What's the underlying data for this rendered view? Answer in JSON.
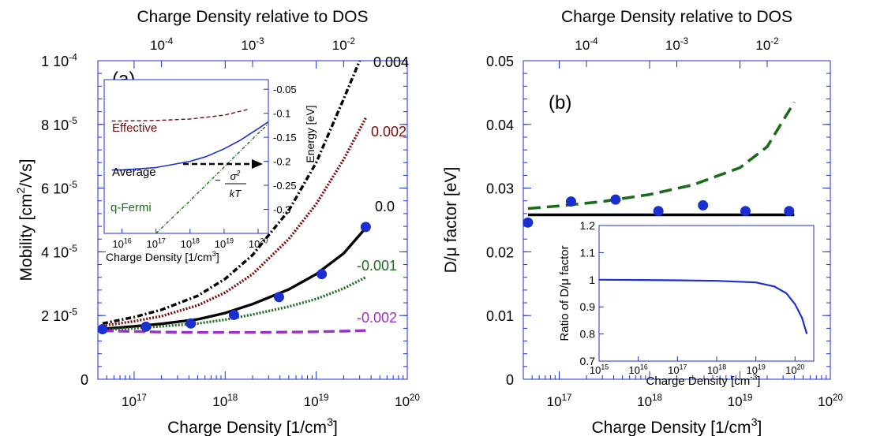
{
  "chart_data": [
    {
      "type": "line",
      "panel_label": "(a)",
      "xlabel": "Charge Density [1/cm",
      "xlabel_sup": "3",
      "xlabel_end": "]",
      "ylabel": "Mobility [cm",
      "ylabel_sup": "2",
      "ylabel_end": "/Vs]",
      "top_axis_label": "Charge Density relative to DOS",
      "xscale": "log",
      "xlim": [
        4e+16,
        1e+20
      ],
      "ylim": [
        0,
        0.0001
      ],
      "x_ticks": [
        {
          "value": 1e+17,
          "base": "10",
          "exp": "17"
        },
        {
          "value": 1e+18,
          "base": "10",
          "exp": "18"
        },
        {
          "value": 1e+19,
          "base": "10",
          "exp": "19"
        },
        {
          "value": 1e+20,
          "base": "10",
          "exp": "20"
        }
      ],
      "y_ticks": [
        {
          "value": 0,
          "mant": "0",
          "exp": ""
        },
        {
          "value": 2e-05,
          "mant": "2 10",
          "exp": "-5"
        },
        {
          "value": 4e-05,
          "mant": "4 10",
          "exp": "-5"
        },
        {
          "value": 6e-05,
          "mant": "6 10",
          "exp": "-5"
        },
        {
          "value": 8e-05,
          "mant": "8 10",
          "exp": "-5"
        },
        {
          "value": 0.0001,
          "mant": "1 10",
          "exp": "-4"
        }
      ],
      "top_ticks": [
        {
          "value": 0.0001,
          "base": "10",
          "exp": "-4"
        },
        {
          "value": 0.001,
          "base": "10",
          "exp": "-3"
        },
        {
          "value": 0.01,
          "base": "10",
          "exp": "-2"
        }
      ],
      "series": [
        {
          "name": "0.004",
          "color": "#000000",
          "dash": "7,3,2,3",
          "width": 3.4,
          "x": [
            4.5e+16,
            1e+17,
            2e+17,
            5e+17,
            1e+18,
            2e+18,
            5e+18,
            1e+19,
            2e+19,
            3e+19
          ],
          "y": [
            1.75e-05,
            1.95e-05,
            2.18e-05,
            2.62e-05,
            3.15e-05,
            3.9e-05,
            5.3e-05,
            6.8e-05,
            8.8e-05,
            0.0001
          ]
        },
        {
          "name": "0.002",
          "color": "#7b0b0b",
          "dash": "2,2",
          "width": 3.4,
          "x": [
            4.5e+16,
            1e+17,
            2e+17,
            5e+17,
            1e+18,
            2e+18,
            5e+18,
            1e+19,
            2e+19,
            3.5e+19
          ],
          "y": [
            1.68e-05,
            1.82e-05,
            1.98e-05,
            2.32e-05,
            2.72e-05,
            3.3e-05,
            4.4e-05,
            5.5e-05,
            6.9e-05,
            8.2e-05
          ]
        },
        {
          "name": "0.0",
          "color": "#000000",
          "dash": "",
          "width": 3.4,
          "x": [
            4.5e+16,
            1e+17,
            2e+17,
            5e+17,
            1e+18,
            2e+18,
            5e+18,
            1e+19,
            2e+19,
            3.5e+19
          ],
          "y": [
            1.58e-05,
            1.66e-05,
            1.74e-05,
            1.88e-05,
            2.08e-05,
            2.36e-05,
            2.82e-05,
            3.3e-05,
            3.95e-05,
            4.75e-05
          ]
        },
        {
          "name": "-0.001",
          "color": "#1e6b1e",
          "dash": "2,2",
          "width": 3.4,
          "x": [
            4.5e+16,
            1e+17,
            2e+17,
            5e+17,
            1e+18,
            2e+18,
            5e+18,
            1e+19,
            2e+19,
            3.5e+19
          ],
          "y": [
            1.55e-05,
            1.6e-05,
            1.66e-05,
            1.75e-05,
            1.87e-05,
            2.03e-05,
            2.28e-05,
            2.52e-05,
            2.85e-05,
            3.2e-05
          ]
        },
        {
          "name": "-0.002",
          "color": "#9b30c8",
          "dash": "14,6",
          "width": 3.4,
          "x": [
            4.5e+16,
            1e+17,
            2e+17,
            5e+17,
            1e+18,
            2e+18,
            5e+18,
            1e+19,
            2e+19,
            3.5e+19
          ],
          "y": [
            1.52e-05,
            1.5e-05,
            1.48e-05,
            1.47e-05,
            1.47e-05,
            1.47e-05,
            1.48e-05,
            1.49e-05,
            1.51e-05,
            1.53e-05
          ]
        }
      ],
      "points": {
        "color": "#1a2fd0",
        "x": [
          4.5e+16,
          1.35e+17,
          4.2e+17,
          1.25e+18,
          3.9e+18,
          1.15e+19,
          3.5e+19
        ],
        "y": [
          1.57e-05,
          1.65e-05,
          1.75e-05,
          2.02e-05,
          2.58e-05,
          3.3e-05,
          4.78e-05
        ]
      },
      "inset": {
        "xlabel": "Charge Density [1/cm",
        "xlabel_sup": "3",
        "xlabel_end": "]",
        "ylabel": "Energy [eV]",
        "xscale": "log",
        "xlim": [
          3000000000000000.0,
          2e+20
        ],
        "ylim": [
          -0.35,
          -0.03
        ],
        "x_ticks": [
          {
            "value": 1e+16,
            "base": "10",
            "exp": "16"
          },
          {
            "value": 1e+17,
            "base": "10",
            "exp": "17"
          },
          {
            "value": 1e+18,
            "base": "10",
            "exp": "18"
          },
          {
            "value": 1e+19,
            "base": "10",
            "exp": "19"
          },
          {
            "value": 1e+20,
            "base": "10",
            "exp": "20"
          }
        ],
        "y_ticks": [
          {
            "value": -0.05,
            "label": "-0.05"
          },
          {
            "value": -0.1,
            "label": "-0.1"
          },
          {
            "value": -0.15,
            "label": "-0.15"
          },
          {
            "value": -0.2,
            "label": "-0.2"
          },
          {
            "value": -0.25,
            "label": "-0.25"
          },
          {
            "value": -0.3,
            "label": "-0.3"
          }
        ],
        "series": [
          {
            "name": "Effective",
            "color": "#7b0b0b",
            "dash": "5,3",
            "width": 1.4,
            "x": [
              5000000000000000.0,
              1e+16,
              1e+17,
              1e+18,
              1e+19,
              5e+19
            ],
            "y": [
              -0.116,
              -0.116,
              -0.115,
              -0.112,
              -0.104,
              -0.092
            ]
          },
          {
            "name": "Average",
            "color": "#1a2fd0",
            "dash": "",
            "width": 1.6,
            "x": [
              5000000000000000.0,
              1e+16,
              1e+17,
              1e+18,
              3e+18,
              1e+19,
              3e+19,
              1e+20,
              2e+20
            ],
            "y": [
              -0.218,
              -0.218,
              -0.213,
              -0.2,
              -0.19,
              -0.174,
              -0.156,
              -0.132,
              -0.118
            ]
          },
          {
            "name": "q-Fermi",
            "color": "#1e6b1e",
            "dash": "4,2,1,2",
            "width": 1.4,
            "x": [
              1e+17,
              1e+18,
              1e+19,
              1e+20,
              2e+20
            ],
            "y": [
              -0.35,
              -0.282,
              -0.212,
              -0.142,
              -0.122
            ]
          }
        ],
        "labels": {
          "effective": "Effective",
          "average": "Average",
          "qfermi": "q-Fermi",
          "formula_minus": "−",
          "formula_num": "σ",
          "formula_num_sup": "2",
          "formula_den": "kT"
        }
      }
    },
    {
      "type": "line",
      "panel_label": "(b)",
      "xlabel": "Charge Density [1/cm",
      "xlabel_sup": "3",
      "xlabel_end": "]",
      "ylabel": "D/μ factor [eV]",
      "top_axis_label": "Charge Density relative to DOS",
      "xscale": "log",
      "xlim": [
        4e+16,
        1e+20
      ],
      "ylim": [
        0,
        0.05
      ],
      "x_ticks": [
        {
          "value": 1e+17,
          "base": "10",
          "exp": "17"
        },
        {
          "value": 1e+18,
          "base": "10",
          "exp": "18"
        },
        {
          "value": 1e+19,
          "base": "10",
          "exp": "19"
        },
        {
          "value": 1e+20,
          "base": "10",
          "exp": "20"
        }
      ],
      "y_ticks": [
        {
          "value": 0,
          "label": "0"
        },
        {
          "value": 0.01,
          "label": "0.01"
        },
        {
          "value": 0.02,
          "label": "0.02"
        },
        {
          "value": 0.03,
          "label": "0.03"
        },
        {
          "value": 0.04,
          "label": "0.04"
        },
        {
          "value": 0.05,
          "label": "0.05"
        }
      ],
      "top_ticks": [
        {
          "value": 0.0001,
          "base": "10",
          "exp": "-4"
        },
        {
          "value": 0.001,
          "base": "10",
          "exp": "-3"
        },
        {
          "value": 0.01,
          "base": "10",
          "exp": "-2"
        }
      ],
      "series": [
        {
          "color": "#1e6b1e",
          "dash": "16,8",
          "width": 3.6,
          "x": [
            4.5e+16,
            1e+17,
            3e+17,
            1e+18,
            3e+18,
            1e+19,
            2e+19,
            4e+19
          ],
          "y": [
            0.0268,
            0.0272,
            0.0279,
            0.029,
            0.0305,
            0.0332,
            0.0365,
            0.0435
          ]
        },
        {
          "color": "#000000",
          "dash": "",
          "width": 3.6,
          "x": [
            4.5e+16,
            4e+19
          ],
          "y": [
            0.0258,
            0.0258
          ]
        }
      ],
      "points": {
        "color": "#1a2fd0",
        "x": [
          4.5e+16,
          1.35e+17,
          4.2e+17,
          1.25e+18,
          3.9e+18,
          1.15e+19,
          3.5e+19
        ],
        "y": [
          0.0246,
          0.0279,
          0.0282,
          0.0264,
          0.0273,
          0.0264,
          0.0264
        ]
      },
      "inset": {
        "xlabel": "Charge Density [cm",
        "xlabel_sup": "-3",
        "xlabel_end": "]",
        "ylabel": "Ratio of D/μ factor",
        "xscale": "log",
        "xlim": [
          1000000000000000.0,
          3e+20
        ],
        "ylim": [
          0.7,
          1.2
        ],
        "x_ticks": [
          {
            "value": 1000000000000000.0,
            "base": "10",
            "exp": "15"
          },
          {
            "value": 1e+16,
            "base": "10",
            "exp": "16"
          },
          {
            "value": 1e+17,
            "base": "10",
            "exp": "17"
          },
          {
            "value": 1e+18,
            "base": "10",
            "exp": "18"
          },
          {
            "value": 1e+19,
            "base": "10",
            "exp": "19"
          },
          {
            "value": 1e+20,
            "base": "10",
            "exp": "20"
          }
        ],
        "y_ticks": [
          {
            "value": 0.7,
            "label": "0.7"
          },
          {
            "value": 0.8,
            "label": "0.8"
          },
          {
            "value": 0.9,
            "label": "0.9"
          },
          {
            "value": 1.0,
            "label": "1"
          },
          {
            "value": 1.1,
            "label": "1.1"
          },
          {
            "value": 1.2,
            "label": "1.2"
          }
        ],
        "series": [
          {
            "color": "#1a2fd0",
            "dash": "",
            "width": 2.2,
            "x": [
              1000000000000000.0,
              1e+16,
              1e+17,
              1e+18,
              1e+19,
              3e+19,
              6e+19,
              1e+20,
              1.5e+20,
              2e+20
            ],
            "y": [
              1.0,
              0.999,
              0.998,
              0.996,
              0.99,
              0.975,
              0.95,
              0.91,
              0.86,
              0.8
            ]
          }
        ]
      }
    }
  ]
}
